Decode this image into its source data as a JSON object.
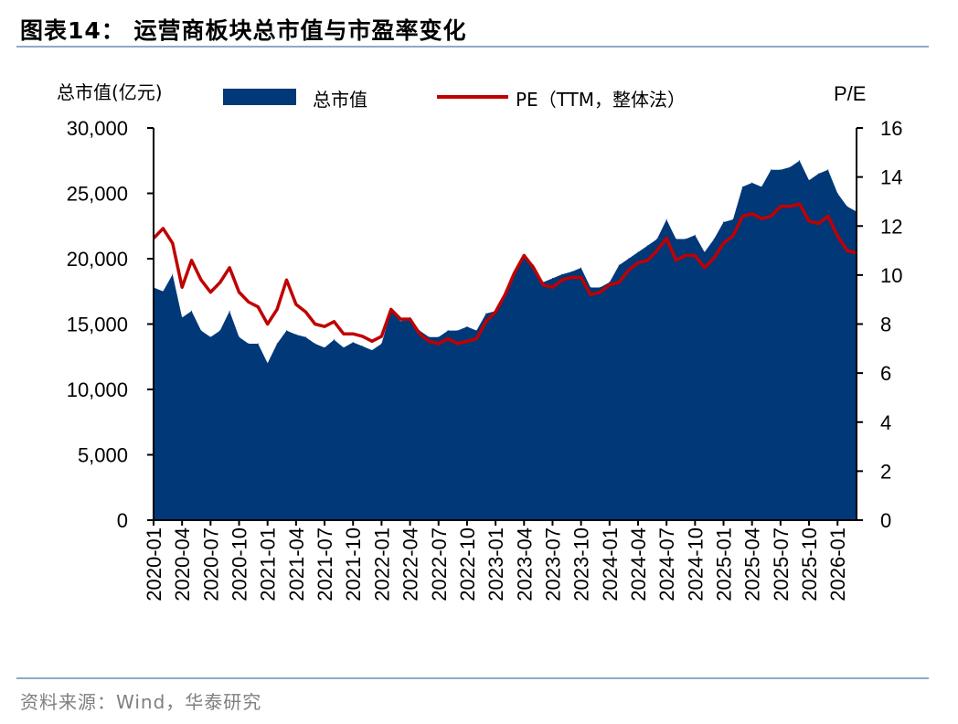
{
  "title": "图表14：  运营商板块总市值与市盈率变化",
  "source": "资料来源：Wind，华泰研究",
  "chart_data": {
    "type": "area+line",
    "title": "运营商板块总市值与市盈率变化",
    "left_axis_label": "总市值(亿元)",
    "right_axis_label": "P/E",
    "legend_position": "top",
    "grid": false,
    "ylim_left": [
      0,
      30000
    ],
    "ylim_right": [
      0,
      16
    ],
    "yticks_left": [
      "0",
      "5,000",
      "10,000",
      "15,000",
      "20,000",
      "25,000",
      "30,000"
    ],
    "yticks_right": [
      "0",
      "2",
      "4",
      "6",
      "8",
      "10",
      "12",
      "14",
      "16"
    ],
    "xticks": [
      "2020-01",
      "2020-04",
      "2020-07",
      "2020-10",
      "2021-01",
      "2021-04",
      "2021-07",
      "2021-10",
      "2022-01",
      "2022-04",
      "2022-07",
      "2022-10",
      "2023-01",
      "2023-04",
      "2023-07",
      "2023-10",
      "2024-01",
      "2024-04",
      "2024-07",
      "2024-10",
      "2025-01",
      "2025-04",
      "2025-07",
      "2025-10",
      "2026-01"
    ],
    "x_start": "2020-01",
    "x_end": "2026-03",
    "series": [
      {
        "name": "总市值",
        "type": "area",
        "axis": "left",
        "color": "#003878",
        "values": [
          17800,
          17500,
          18800,
          15500,
          16000,
          14500,
          14000,
          14500,
          16000,
          14000,
          13500,
          13500,
          12000,
          13500,
          14500,
          14200,
          14000,
          13500,
          13200,
          13800,
          13200,
          13600,
          13300,
          13000,
          13500,
          16000,
          15200,
          15500,
          14500,
          14000,
          14000,
          14500,
          14500,
          14800,
          14500,
          15800,
          16000,
          17500,
          19000,
          20200,
          19500,
          18200,
          18500,
          18800,
          19000,
          19300,
          17800,
          17800,
          18200,
          19500,
          20000,
          20500,
          21000,
          21500,
          23000,
          21500,
          21500,
          21800,
          20500,
          21500,
          22800,
          23000,
          25500,
          25800,
          25500,
          26800,
          26800,
          27000,
          27500,
          26000,
          26500,
          26800,
          25000,
          24000,
          23600
        ]
      },
      {
        "name": "PE（TTM，整体法）",
        "type": "line",
        "axis": "right",
        "color": "#C00000",
        "values": [
          11.5,
          11.9,
          11.3,
          9.5,
          10.6,
          9.8,
          9.3,
          9.7,
          10.3,
          9.3,
          8.9,
          8.7,
          8.0,
          8.6,
          9.8,
          8.8,
          8.5,
          8.0,
          7.9,
          8.1,
          7.6,
          7.6,
          7.5,
          7.3,
          7.5,
          8.6,
          8.2,
          8.2,
          7.6,
          7.3,
          7.2,
          7.4,
          7.2,
          7.3,
          7.4,
          8.1,
          8.5,
          9.2,
          10.1,
          10.8,
          10.3,
          9.6,
          9.5,
          9.8,
          9.9,
          9.9,
          9.2,
          9.3,
          9.6,
          9.7,
          10.2,
          10.5,
          10.6,
          11.0,
          11.5,
          10.6,
          10.8,
          10.8,
          10.3,
          10.7,
          11.3,
          11.6,
          12.4,
          12.5,
          12.3,
          12.4,
          12.8,
          12.8,
          12.9,
          12.2,
          12.1,
          12.4,
          11.6,
          11.0,
          10.9
        ]
      }
    ]
  }
}
